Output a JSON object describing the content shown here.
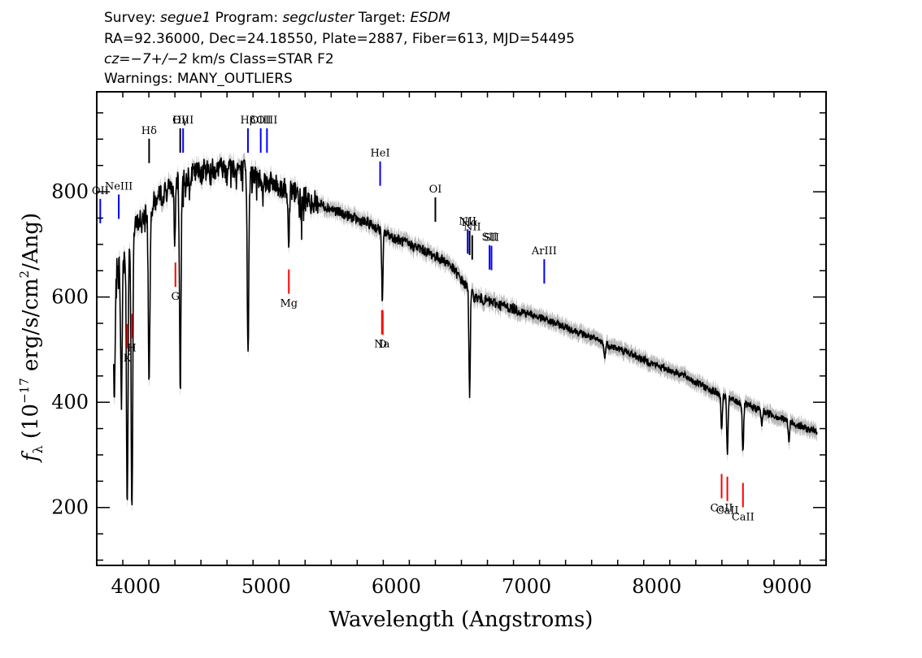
{
  "header": {
    "line1": {
      "survey_label": "Survey: ",
      "survey": "segue1",
      "program_label": " Program: ",
      "program": "segcluster",
      "target_label": " Target: ",
      "target": "ESDM"
    },
    "line2": "RA=92.36000, Dec=24.18550, Plate=2887, Fiber=613, MJD=54495",
    "line3": {
      "cz": "cz=−7+/−2",
      "rest": " km/s Class=STAR F2"
    },
    "line4": "Warnings: MANY_OUTLIERS"
  },
  "chart_data": {
    "type": "line",
    "xlabel": "Wavelength (Angstroms)",
    "ylabel_prefix": "f",
    "ylabel_sub": "λ",
    "ylabel_main": " (10",
    "ylabel_exp": "−17",
    "ylabel_mid": " erg/s/cm",
    "ylabel_exp2": "2",
    "ylabel_end": "/Ang)",
    "xlim": [
      3700,
      9300
    ],
    "ylim": [
      90,
      990
    ],
    "xticks": [
      4000,
      5000,
      6000,
      7000,
      8000,
      9000
    ],
    "yticks": [
      200,
      400,
      600,
      800
    ],
    "colors": {
      "spectrum": "#000000",
      "error": "#bbbbbb",
      "emission": "#0000ff",
      "absorption": "#ff0000",
      "sky": "#000000"
    },
    "continuum": {
      "x": [
        3820,
        3900,
        4000,
        4100,
        4200,
        4300,
        4400,
        4500,
        4600,
        4700,
        4800,
        4900,
        5000,
        5200,
        5400,
        5600,
        5800,
        6000,
        6200,
        6400,
        6600,
        6800,
        7000,
        7200,
        7400,
        7600,
        7800,
        8000,
        8200,
        8400,
        8600,
        8800,
        9000,
        9200
      ],
      "y": [
        640,
        680,
        735,
        770,
        795,
        815,
        830,
        840,
        845,
        848,
        845,
        830,
        820,
        800,
        778,
        757,
        738,
        710,
        690,
        665,
        600,
        585,
        570,
        552,
        533,
        512,
        492,
        470,
        452,
        425,
        402,
        385,
        365,
        345
      ]
    },
    "absorption_features": [
      {
        "x": 3835,
        "depth": 250
      },
      {
        "x": 3889,
        "depth": 280
      },
      {
        "x": 3934,
        "depth": 500
      },
      {
        "x": 3970,
        "depth": 520
      },
      {
        "x": 4102,
        "depth": 330
      },
      {
        "x": 4300,
        "depth": 120
      },
      {
        "x": 4341,
        "depth": 380
      },
      {
        "x": 4861,
        "depth": 330
      },
      {
        "x": 5175,
        "depth": 90
      },
      {
        "x": 5270,
        "depth": 40
      },
      {
        "x": 5893,
        "depth": 140
      },
      {
        "x": 6563,
        "depth": 195
      },
      {
        "x": 7600,
        "depth": 30
      },
      {
        "x": 8498,
        "depth": 70
      },
      {
        "x": 8542,
        "depth": 110
      },
      {
        "x": 8662,
        "depth": 95
      },
      {
        "x": 8806,
        "depth": 30
      },
      {
        "x": 9015,
        "depth": 40
      }
    ],
    "emission_lines": [
      {
        "label": "OII",
        "x": 3727
      },
      {
        "label": "NeIII",
        "x": 3869
      },
      {
        "label": "Hδ",
        "x": 4102
      },
      {
        "label": "Hγ",
        "x": 4341
      },
      {
        "label": "OIII",
        "x": 4363
      },
      {
        "label": "Hβ",
        "x": 4861
      },
      {
        "label": "OIII",
        "x": 4959
      },
      {
        "label": "OIII",
        "x": 5007
      },
      {
        "label": "HeI",
        "x": 5876
      },
      {
        "label": "OI",
        "x": 6300
      },
      {
        "label": "NII",
        "x": 6548
      },
      {
        "label": "Hα",
        "x": 6563
      },
      {
        "label": "NII",
        "x": 6583
      },
      {
        "label": "SII",
        "x": 6716
      },
      {
        "label": "SII",
        "x": 6731
      },
      {
        "label": "ArIII",
        "x": 7136
      }
    ],
    "absorption_lines": [
      {
        "label": "K",
        "x": 3934
      },
      {
        "label": "H",
        "x": 3969
      },
      {
        "label": "G",
        "x": 4304
      },
      {
        "label": "Mg",
        "x": 5175
      },
      {
        "label": "Na",
        "x": 5890
      },
      {
        "label": "D",
        "x": 5896
      },
      {
        "label": "CaII",
        "x": 8498
      },
      {
        "label": "CaII",
        "x": 8542
      },
      {
        "label": "CaII",
        "x": 8662
      }
    ]
  }
}
